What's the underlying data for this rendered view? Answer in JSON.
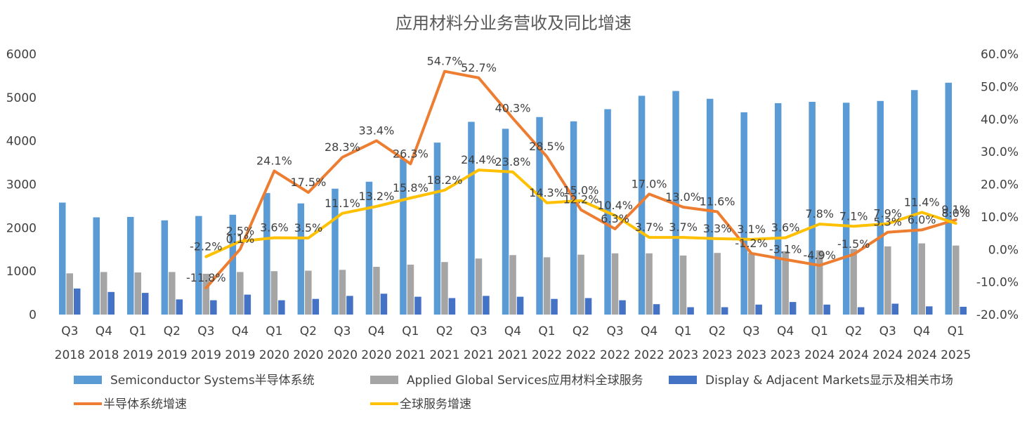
{
  "chart_data": {
    "type": "bar",
    "title": "应用材料分业务营收及同比增速",
    "categories": [
      [
        "Q3",
        "2018"
      ],
      [
        "Q4",
        "2018"
      ],
      [
        "Q1",
        "2019"
      ],
      [
        "Q2",
        "2019"
      ],
      [
        "Q3",
        "2019"
      ],
      [
        "Q4",
        "2019"
      ],
      [
        "Q1",
        "2020"
      ],
      [
        "Q2",
        "2020"
      ],
      [
        "Q3",
        "2020"
      ],
      [
        "Q4",
        "2020"
      ],
      [
        "Q1",
        "2021"
      ],
      [
        "Q2",
        "2021"
      ],
      [
        "Q3",
        "2021"
      ],
      [
        "Q4",
        "2021"
      ],
      [
        "Q1",
        "2022"
      ],
      [
        "Q2",
        "2022"
      ],
      [
        "Q3",
        "2022"
      ],
      [
        "Q4",
        "2022"
      ],
      [
        "Q1",
        "2023"
      ],
      [
        "Q2",
        "2023"
      ],
      [
        "Q3",
        "2023"
      ],
      [
        "Q4",
        "2023"
      ],
      [
        "Q1",
        "2024"
      ],
      [
        "Q2",
        "2024"
      ],
      [
        "Q3",
        "2024"
      ],
      [
        "Q4",
        "2024"
      ],
      [
        "Q1",
        "2025"
      ]
    ],
    "y_left": {
      "min": 0,
      "max": 6000,
      "ticks": [
        0,
        1000,
        2000,
        3000,
        4000,
        5000,
        6000
      ]
    },
    "y_right": {
      "min": -20,
      "max": 60,
      "ticks": [
        "-20.0%",
        "-10.0%",
        "0.0%",
        "10.0%",
        "20.0%",
        "30.0%",
        "40.0%",
        "50.0%",
        "60.0%"
      ]
    },
    "bar_series": [
      {
        "name": "Semiconductor Systems半导体系统",
        "color": "#5B9BD5",
        "values": [
          2580,
          2240,
          2250,
          2170,
          2270,
          2300,
          2800,
          2560,
          2900,
          3060,
          3580,
          3960,
          4440,
          4280,
          4550,
          4450,
          4730,
          5040,
          5150,
          4970,
          4660,
          4870,
          4900,
          4880,
          4920,
          5170,
          5340
        ]
      },
      {
        "name": "Applied Global Services应用材料全球服务",
        "color": "#A5A5A5",
        "values": [
          950,
          980,
          970,
          980,
          940,
          980,
          1000,
          1010,
          1030,
          1100,
          1150,
          1210,
          1290,
          1370,
          1320,
          1380,
          1410,
          1410,
          1360,
          1420,
          1420,
          1460,
          1480,
          1510,
          1570,
          1640,
          1590
        ]
      },
      {
        "name": "Display & Adjacent Markets显示及相关市场",
        "color": "#4472C4",
        "values": [
          600,
          520,
          500,
          350,
          330,
          460,
          330,
          360,
          430,
          480,
          410,
          380,
          430,
          410,
          360,
          380,
          330,
          240,
          170,
          170,
          230,
          290,
          230,
          170,
          250,
          190,
          180
        ]
      }
    ],
    "line_series": [
      {
        "name": "半导体系统增速",
        "color": "#ED7D31",
        "values": [
          null,
          null,
          null,
          null,
          -11.8,
          0.1,
          24.1,
          17.5,
          28.3,
          33.4,
          26.3,
          54.7,
          52.7,
          40.3,
          28.5,
          12.2,
          6.3,
          17.0,
          13.0,
          11.6,
          -1.2,
          -3.1,
          -4.9,
          -1.5,
          5.3,
          6.0,
          9.1
        ],
        "labels": [
          "",
          "",
          "",
          "",
          "-11.8%",
          "0.1%",
          "24.1%",
          "17.5%",
          "28.3%",
          "33.4%",
          "26.3%",
          "54.7%",
          "52.7%",
          "40.3%",
          "28.5%",
          "12.2%",
          "6.3%",
          "17.0%",
          "13.0%",
          "11.6%",
          "-1.2%",
          "-3.1%",
          "-4.9%",
          "-1.5%",
          "5.3%",
          "6.0%",
          "9.1%"
        ]
      },
      {
        "name": "全球服务增速",
        "color": "#FFC000",
        "values": [
          null,
          null,
          null,
          null,
          -2.2,
          2.5,
          3.6,
          3.5,
          11.1,
          13.2,
          15.8,
          18.2,
          24.4,
          23.8,
          14.3,
          15.0,
          10.4,
          3.7,
          3.7,
          3.3,
          3.1,
          3.6,
          7.8,
          7.1,
          7.9,
          11.4,
          8.0
        ],
        "labels": [
          "",
          "",
          "",
          "",
          "-2.2%",
          "2.5%",
          "3.6%",
          "3.5%",
          "11.1%",
          "13.2%",
          "15.8%",
          "18.2%",
          "24.4%",
          "23.8%",
          "14.3%",
          "15.0%",
          "10.4%",
          "3.7%",
          "3.7%",
          "3.3%",
          "3.1%",
          "3.6%",
          "7.8%",
          "7.1%",
          "7.9%",
          "11.4%",
          "8.0%"
        ]
      }
    ],
    "legend_position": "bottom",
    "grid": false
  }
}
